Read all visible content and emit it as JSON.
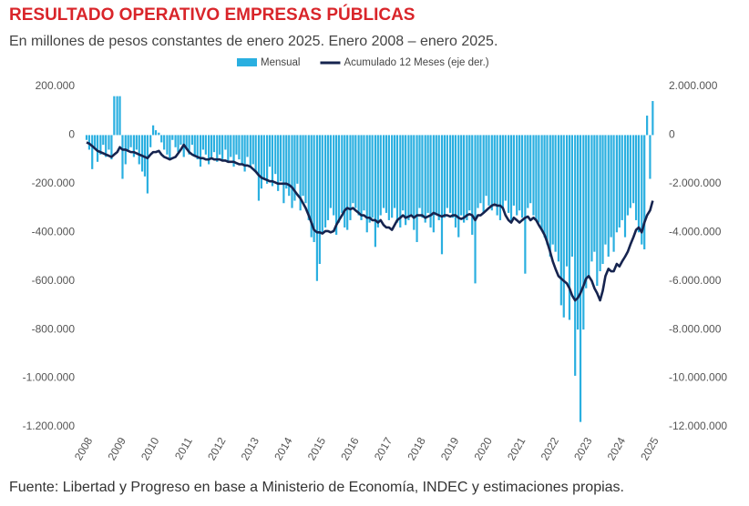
{
  "chart_data": {
    "type": "bar_line",
    "title": "RESULTADO OPERATIVO EMPRESAS PÚBLICAS",
    "subtitle": "En millones de pesos constantes de enero 2025. Enero 2008 – enero 2025.",
    "source": "Fuente: Libertad y Progreso en base a Ministerio de Economía, INDEC y estimaciones propias.",
    "x": [
      2008,
      2008.08,
      2008.17,
      2008.25,
      2008.33,
      2008.42,
      2008.5,
      2008.58,
      2008.67,
      2008.75,
      2008.83,
      2008.92,
      2009,
      2009.08,
      2009.17,
      2009.25,
      2009.33,
      2009.42,
      2009.5,
      2009.58,
      2009.67,
      2009.75,
      2009.83,
      2009.92,
      2010,
      2010.08,
      2010.17,
      2010.25,
      2010.33,
      2010.42,
      2010.5,
      2010.58,
      2010.67,
      2010.75,
      2010.83,
      2010.92,
      2011,
      2011.08,
      2011.17,
      2011.25,
      2011.33,
      2011.42,
      2011.5,
      2011.58,
      2011.67,
      2011.75,
      2011.83,
      2011.92,
      2012,
      2012.08,
      2012.17,
      2012.25,
      2012.33,
      2012.42,
      2012.5,
      2012.58,
      2012.67,
      2012.75,
      2012.83,
      2012.92,
      2013,
      2013.08,
      2013.17,
      2013.25,
      2013.33,
      2013.42,
      2013.5,
      2013.58,
      2013.67,
      2013.75,
      2013.83,
      2013.92,
      2014,
      2014.08,
      2014.17,
      2014.25,
      2014.33,
      2014.42,
      2014.5,
      2014.58,
      2014.67,
      2014.75,
      2014.83,
      2014.92,
      2015,
      2015.08,
      2015.17,
      2015.25,
      2015.33,
      2015.42,
      2015.5,
      2015.58,
      2015.67,
      2015.75,
      2015.83,
      2015.92,
      2016,
      2016.08,
      2016.17,
      2016.25,
      2016.33,
      2016.42,
      2016.5,
      2016.58,
      2016.67,
      2016.75,
      2016.83,
      2016.92,
      2017,
      2017.08,
      2017.17,
      2017.25,
      2017.33,
      2017.42,
      2017.5,
      2017.58,
      2017.67,
      2017.75,
      2017.83,
      2017.92,
      2018,
      2018.08,
      2018.17,
      2018.25,
      2018.33,
      2018.42,
      2018.5,
      2018.58,
      2018.67,
      2018.75,
      2018.83,
      2018.92,
      2019,
      2019.08,
      2019.17,
      2019.25,
      2019.33,
      2019.42,
      2019.5,
      2019.58,
      2019.67,
      2019.75,
      2019.83,
      2019.92,
      2020,
      2020.08,
      2020.17,
      2020.25,
      2020.33,
      2020.42,
      2020.5,
      2020.58,
      2020.67,
      2020.75,
      2020.83,
      2020.92,
      2021,
      2021.08,
      2021.17,
      2021.25,
      2021.33,
      2021.42,
      2021.5,
      2021.58,
      2021.67,
      2021.75,
      2021.83,
      2021.92,
      2022,
      2022.08,
      2022.17,
      2022.25,
      2022.33,
      2022.42,
      2022.5,
      2022.58,
      2022.67,
      2022.75,
      2022.83,
      2022.92,
      2023,
      2023.08,
      2023.17,
      2023.25,
      2023.33,
      2023.42,
      2023.5,
      2023.58,
      2023.67,
      2023.75,
      2023.83,
      2023.92,
      2024,
      2024.08,
      2024.17,
      2024.25,
      2024.33,
      2024.42,
      2024.5,
      2024.58,
      2024.67,
      2024.75,
      2024.83,
      2024.92,
      2025
    ],
    "xlim": [
      2008,
      2025.1
    ],
    "xticks": [
      2008,
      2009,
      2010,
      2011,
      2012,
      2013,
      2014,
      2015,
      2016,
      2017,
      2018,
      2019,
      2020,
      2021,
      2022,
      2023,
      2024,
      2025
    ],
    "ylim": [
      -1200000,
      200000
    ],
    "yticks": [
      {
        "value": -1200000,
        "label": "-1.200.000"
      },
      {
        "value": -1000000,
        "label": "-1.000.000"
      },
      {
        "value": -800000,
        "label": "-800.000"
      },
      {
        "value": -600000,
        "label": "-600.000"
      },
      {
        "value": -400000,
        "label": "-400.000"
      },
      {
        "value": -200000,
        "label": "-200.000"
      },
      0,
      {
        "value": 200000,
        "label": "200.000"
      }
    ],
    "y2lim": [
      -12000000,
      2000000
    ],
    "y2ticks": [
      {
        "value": -12000000,
        "label": "-12.000.000"
      },
      {
        "value": -10000000,
        "label": "-10.000.000"
      },
      {
        "value": -8000000,
        "label": "-8.000.000"
      },
      {
        "value": -6000000,
        "label": "-6.000.000"
      },
      {
        "value": -4000000,
        "label": "-4.000.000"
      },
      {
        "value": -2000000,
        "label": "-2.000.000"
      },
      0,
      {
        "value": 2000000,
        "label": "2.000.000"
      }
    ],
    "series": [
      {
        "name": "Mensual",
        "type": "bar",
        "color": "#2aafe0",
        "values": [
          -20000,
          -60000,
          -140000,
          -50000,
          -110000,
          -80000,
          -40000,
          -90000,
          -60000,
          -100000,
          160000,
          160000,
          160000,
          -180000,
          -120000,
          -60000,
          -50000,
          -90000,
          -60000,
          -120000,
          -150000,
          -170000,
          -240000,
          -50000,
          40000,
          20000,
          10000,
          -30000,
          -60000,
          -80000,
          -100000,
          -20000,
          -50000,
          -70000,
          -40000,
          -90000,
          -60000,
          -80000,
          -40000,
          -90000,
          -100000,
          -130000,
          -60000,
          -80000,
          -120000,
          -90000,
          -70000,
          -110000,
          -80000,
          -100000,
          -60000,
          -110000,
          -90000,
          -130000,
          -80000,
          -100000,
          -120000,
          -150000,
          -90000,
          -130000,
          -120000,
          -150000,
          -270000,
          -220000,
          -180000,
          -200000,
          -130000,
          -210000,
          -160000,
          -230000,
          -190000,
          -280000,
          -220000,
          -250000,
          -300000,
          -270000,
          -200000,
          -310000,
          -250000,
          -280000,
          -350000,
          -420000,
          -440000,
          -600000,
          -530000,
          -400000,
          -380000,
          -350000,
          -300000,
          -330000,
          -410000,
          -360000,
          -320000,
          -380000,
          -390000,
          -350000,
          -280000,
          -300000,
          -330000,
          -350000,
          -310000,
          -400000,
          -360000,
          -340000,
          -460000,
          -380000,
          -330000,
          -300000,
          -320000,
          -350000,
          -340000,
          -300000,
          -360000,
          -380000,
          -310000,
          -370000,
          -350000,
          -330000,
          -390000,
          -440000,
          -300000,
          -340000,
          -360000,
          -320000,
          -380000,
          -400000,
          -330000,
          -350000,
          -490000,
          -340000,
          -300000,
          -320000,
          -340000,
          -380000,
          -420000,
          -330000,
          -360000,
          -350000,
          -310000,
          -410000,
          -610000,
          -300000,
          -280000,
          -320000,
          -250000,
          -290000,
          -310000,
          -280000,
          -330000,
          -350000,
          -300000,
          -270000,
          -320000,
          -360000,
          -290000,
          -330000,
          -310000,
          -340000,
          -570000,
          -300000,
          -280000,
          -330000,
          -350000,
          -360000,
          -390000,
          -420000,
          -450000,
          -500000,
          -450000,
          -480000,
          -520000,
          -700000,
          -750000,
          -540000,
          -760000,
          -500000,
          -990000,
          -800000,
          -1180000,
          -800000,
          -630000,
          -580000,
          -520000,
          -480000,
          -620000,
          -560000,
          -530000,
          -450000,
          -500000,
          -420000,
          -480000,
          -400000,
          -380000,
          -350000,
          -420000,
          -330000,
          -300000,
          -280000,
          -350000,
          -400000,
          -450000,
          -470000,
          80000,
          -180000,
          140000
        ]
      },
      {
        "name": "Acumulado 12 Meses (eje der.)",
        "type": "line",
        "axis": "y2",
        "color": "#16244f",
        "values": [
          -300000,
          -350000,
          -450000,
          -550000,
          -650000,
          -700000,
          -750000,
          -800000,
          -850000,
          -900000,
          -800000,
          -700000,
          -500000,
          -600000,
          -600000,
          -650000,
          -700000,
          -700000,
          -750000,
          -800000,
          -850000,
          -900000,
          -950000,
          -800000,
          -700000,
          -700000,
          -650000,
          -800000,
          -900000,
          -950000,
          -1000000,
          -950000,
          -900000,
          -750000,
          -600000,
          -400000,
          -550000,
          -700000,
          -800000,
          -850000,
          -900000,
          -950000,
          -950000,
          -1000000,
          -1000000,
          -950000,
          -1000000,
          -1000000,
          -1000000,
          -1050000,
          -1050000,
          -1100000,
          -1100000,
          -1100000,
          -1150000,
          -1200000,
          -1200000,
          -1250000,
          -1250000,
          -1300000,
          -1400000,
          -1500000,
          -1650000,
          -1750000,
          -1800000,
          -1850000,
          -1900000,
          -1900000,
          -1950000,
          -2000000,
          -2000000,
          -2000000,
          -2000000,
          -2050000,
          -2150000,
          -2300000,
          -2450000,
          -2600000,
          -2800000,
          -3000000,
          -3300000,
          -3600000,
          -3900000,
          -4000000,
          -4000000,
          -4050000,
          -3950000,
          -3950000,
          -4000000,
          -3950000,
          -3700000,
          -3500000,
          -3300000,
          -3100000,
          -3000000,
          -3050000,
          -3000000,
          -3100000,
          -3200000,
          -3300000,
          -3300000,
          -3400000,
          -3400000,
          -3500000,
          -3500000,
          -3600000,
          -3500000,
          -3700000,
          -3800000,
          -3800000,
          -3900000,
          -3700000,
          -3500000,
          -3400000,
          -3300000,
          -3400000,
          -3350000,
          -3300000,
          -3400000,
          -3300000,
          -3300000,
          -3300000,
          -3400000,
          -3350000,
          -3300000,
          -3200000,
          -3250000,
          -3300000,
          -3350000,
          -3300000,
          -3300000,
          -3350000,
          -3300000,
          -3300000,
          -3400000,
          -3450000,
          -3400000,
          -3300000,
          -3250000,
          -3300000,
          -3500000,
          -3300000,
          -3300000,
          -3200000,
          -3100000,
          -3000000,
          -2900000,
          -2850000,
          -2900000,
          -2900000,
          -3000000,
          -3300000,
          -3500000,
          -3600000,
          -3400000,
          -3500000,
          -3600000,
          -3500000,
          -3400000,
          -3350000,
          -3500000,
          -3400000,
          -3500000,
          -3700000,
          -3900000,
          -4100000,
          -4400000,
          -4800000,
          -5200000,
          -5500000,
          -5800000,
          -5900000,
          -6000000,
          -6100000,
          -6300000,
          -6600000,
          -6800000,
          -6700000,
          -6500000,
          -6200000,
          -5900000,
          -5800000,
          -6000000,
          -6300000,
          -6500000,
          -6800000,
          -6400000,
          -5800000,
          -5500000,
          -5600000,
          -5600000,
          -5300000,
          -5400000,
          -5200000,
          -5000000,
          -4800000,
          -4500000,
          -4200000,
          -3900000,
          -3800000,
          -4000000,
          -3600000,
          -3300000,
          -3100000,
          -2700000
        ]
      }
    ]
  }
}
